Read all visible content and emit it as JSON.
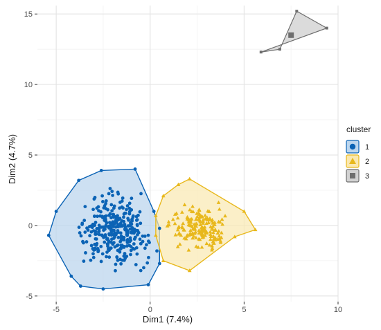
{
  "chart_data": {
    "type": "scatter",
    "xlabel": "Dim1 (7.4%)",
    "ylabel": "Dim2 (4.7%)",
    "xlim": [
      -6,
      10
    ],
    "ylim": [
      -5.4,
      15.6
    ],
    "x_ticks": [
      -5,
      0,
      5,
      10
    ],
    "y_ticks": [
      -5,
      0,
      5,
      10,
      15
    ],
    "x_tick_labels": [
      "-5",
      "0",
      "5",
      "10"
    ],
    "y_tick_labels": [
      "-5",
      "0",
      "5",
      "10",
      "15"
    ],
    "grid": true,
    "legend": {
      "title": "cluster",
      "position": "right"
    },
    "series": [
      {
        "name": "1",
        "marker": "circle",
        "color": "#0b63b5",
        "fill": "#bcd6ee",
        "hull": [
          [
            -5.4,
            -0.7
          ],
          [
            -5.0,
            1.0
          ],
          [
            -3.8,
            3.2
          ],
          [
            -2.6,
            3.9
          ],
          [
            -0.8,
            4.0
          ],
          [
            0.2,
            1.0
          ],
          [
            0.5,
            -0.2
          ],
          [
            0.5,
            -2.7
          ],
          [
            -0.1,
            -4.2
          ],
          [
            -2.5,
            -4.5
          ],
          [
            -3.7,
            -4.3
          ],
          [
            -4.2,
            -3.6
          ],
          [
            -5.4,
            -0.7
          ]
        ],
        "centroid": [
          -1.9,
          -0.4
        ],
        "n_points": 330
      },
      {
        "name": "2",
        "marker": "triangle",
        "color": "#e8b81c",
        "fill": "#fae8b0",
        "hull": [
          [
            0.3,
            0.7
          ],
          [
            0.7,
            2.1
          ],
          [
            1.5,
            2.9
          ],
          [
            2.1,
            3.3
          ],
          [
            5.0,
            1.0
          ],
          [
            5.6,
            -0.3
          ],
          [
            4.5,
            -0.8
          ],
          [
            2.1,
            -3.2
          ],
          [
            0.7,
            -2.5
          ],
          [
            0.3,
            -0.7
          ],
          [
            0.3,
            0.7
          ]
        ],
        "centroid": [
          2.6,
          -0.1
        ],
        "n_points": 180
      },
      {
        "name": "3",
        "marker": "square",
        "color": "#6e6e6e",
        "fill": "#d2d2d2",
        "points": [
          [
            5.9,
            12.3
          ],
          [
            6.9,
            12.5
          ],
          [
            7.8,
            15.2
          ],
          [
            9.4,
            14.0
          ]
        ],
        "centroid": [
          7.5,
          13.5
        ]
      }
    ]
  }
}
